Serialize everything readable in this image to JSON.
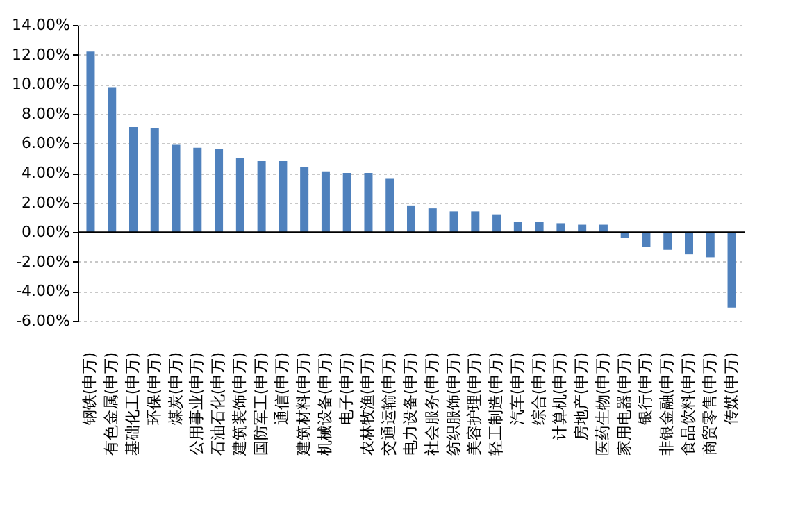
{
  "chart_data": {
    "type": "bar",
    "categories": [
      "钢铁(申万)",
      "有色金属(申万)",
      "基础化工(申万)",
      "环保(申万)",
      "煤炭(申万)",
      "公用事业(申万)",
      "石油石化(申万)",
      "建筑装饰(申万)",
      "国防军工(申万)",
      "通信(申万)",
      "建筑材料(申万)",
      "机械设备(申万)",
      "电子(申万)",
      "农林牧渔(申万)",
      "交通运输(申万)",
      "电力设备(申万)",
      "社会服务(申万)",
      "纺织服饰(申万)",
      "美容护理(申万)",
      "轻工制造(申万)",
      "汽车(申万)",
      "综合(申万)",
      "计算机(申万)",
      "房地产(申万)",
      "医药生物(申万)",
      "家用电器(申万)",
      "银行(申万)",
      "非银金融(申万)",
      "食品饮料(申万)",
      "商贸零售(申万)",
      "传媒(申万)"
    ],
    "series": [
      {
        "color": "#4f81bd",
        "values": [
          12.2,
          9.8,
          7.1,
          7.0,
          5.9,
          5.7,
          5.6,
          5.0,
          4.8,
          4.8,
          4.4,
          4.1,
          4.0,
          4.0,
          3.6,
          1.8,
          1.6,
          1.4,
          1.4,
          1.2,
          0.7,
          0.7,
          0.6,
          0.5,
          0.5,
          -0.4,
          -1.0,
          -1.2,
          -1.5,
          -1.7,
          -5.1
        ]
      }
    ],
    "ylim": [
      -6,
      14
    ],
    "yticks": [
      {
        "value": -6,
        "label": "-6.00%"
      },
      {
        "value": -4,
        "label": "-4.00%"
      },
      {
        "value": -2,
        "label": "-2.00%"
      },
      {
        "value": 0,
        "label": "0.00%"
      },
      {
        "value": 2,
        "label": "2.00%"
      },
      {
        "value": 4,
        "label": "4.00%"
      },
      {
        "value": 6,
        "label": "6.00%"
      },
      {
        "value": 8,
        "label": "8.00%"
      },
      {
        "value": 10,
        "label": "10.00%"
      },
      {
        "value": 12,
        "label": "12.00%"
      },
      {
        "value": 14,
        "label": "14.00%"
      }
    ],
    "grid": "y"
  }
}
